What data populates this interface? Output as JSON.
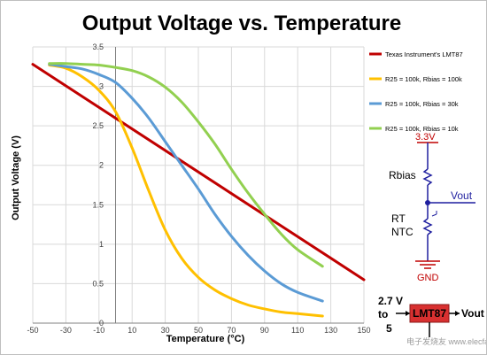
{
  "chart_data": {
    "type": "line",
    "title": "Output Voltage vs. Temperature",
    "xlabel": "Temperature (°C)",
    "ylabel": "Output Voltage (V)",
    "xlim": [
      -50,
      150
    ],
    "ylim": [
      0,
      3.5
    ],
    "x_ticks": [
      "-50",
      "-30",
      "-10",
      "10",
      "30",
      "50",
      "70",
      "90",
      "110",
      "130",
      "150"
    ],
    "y_ticks": [
      "0",
      "0.5",
      "1",
      "1.5",
      "2",
      "2.5",
      "3",
      "3.5"
    ],
    "grid": true,
    "legend_position": "right",
    "series": [
      {
        "name": "Texas Instrument's LMT87",
        "color": "#c00000",
        "x": [
          -50,
          150
        ],
        "y": [
          3.28,
          0.55
        ]
      },
      {
        "name": "R25 = 100k, Rbias = 100k",
        "color": "#ffc000",
        "x": [
          -40,
          -30,
          -20,
          -10,
          0,
          10,
          20,
          30,
          40,
          50,
          60,
          70,
          80,
          90,
          100,
          110,
          125
        ],
        "y": [
          3.27,
          3.23,
          3.12,
          2.95,
          2.68,
          2.22,
          1.68,
          1.18,
          0.82,
          0.58,
          0.42,
          0.31,
          0.23,
          0.18,
          0.14,
          0.12,
          0.09
        ]
      },
      {
        "name": "R25 = 100k, Rbias = 30k",
        "color": "#5b9bd5",
        "x": [
          -40,
          -30,
          -20,
          -10,
          0,
          10,
          20,
          30,
          40,
          50,
          60,
          70,
          80,
          90,
          100,
          110,
          125
        ],
        "y": [
          3.28,
          3.25,
          3.22,
          3.15,
          3.05,
          2.85,
          2.6,
          2.3,
          2.0,
          1.7,
          1.38,
          1.1,
          0.86,
          0.66,
          0.5,
          0.39,
          0.28
        ]
      },
      {
        "name": "R25 = 100k, Rbias = 10k",
        "color": "#92d050",
        "x": [
          -40,
          -30,
          -20,
          -10,
          0,
          10,
          20,
          30,
          40,
          50,
          60,
          70,
          80,
          90,
          100,
          110,
          125
        ],
        "y": [
          3.29,
          3.29,
          3.28,
          3.27,
          3.24,
          3.2,
          3.12,
          2.99,
          2.8,
          2.55,
          2.27,
          1.95,
          1.65,
          1.38,
          1.13,
          0.93,
          0.72
        ]
      }
    ]
  },
  "schematic": {
    "supply": "3.3V",
    "rbias": "Rbias",
    "vout": "Vout",
    "rt": "RT",
    "ntc": "NTC",
    "gnd": "GND",
    "chip_supply": "2.7 V",
    "chip_to": "to",
    "chip_supply_max": "5",
    "chip_name": "LMT87",
    "chip_out": "Vout"
  },
  "watermark": "电子发烧友 www.elecfans.com",
  "colors": {
    "grid": "#d9d9d9",
    "schematic_wire": "#1f1f9f",
    "schematic_red": "#c00000",
    "chip_fill": "#d83030"
  }
}
